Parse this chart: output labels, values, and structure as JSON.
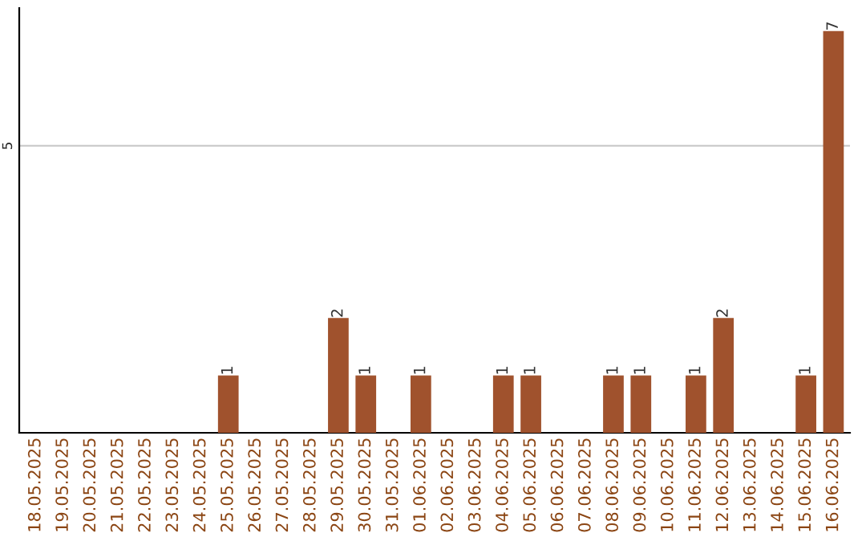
{
  "chart_data": {
    "type": "bar",
    "categories": [
      "18.05.2025",
      "19.05.2025",
      "20.05.2025",
      "21.05.2025",
      "22.05.2025",
      "23.05.2025",
      "24.05.2025",
      "25.05.2025",
      "26.05.2025",
      "27.05.2025",
      "28.05.2025",
      "29.05.2025",
      "30.05.2025",
      "31.05.2025",
      "01.06.2025",
      "02.06.2025",
      "03.06.2025",
      "04.06.2025",
      "05.06.2025",
      "06.06.2025",
      "07.06.2025",
      "08.06.2025",
      "09.06.2025",
      "10.06.2025",
      "11.06.2025",
      "12.06.2025",
      "13.06.2025",
      "14.06.2025",
      "15.06.2025",
      "16.06.2025"
    ],
    "values": [
      0,
      0,
      0,
      0,
      0,
      0,
      0,
      1,
      0,
      0,
      0,
      2,
      1,
      0,
      1,
      0,
      0,
      1,
      1,
      0,
      0,
      1,
      1,
      0,
      1,
      2,
      0,
      0,
      1,
      7
    ],
    "value_labels": [
      null,
      null,
      null,
      null,
      null,
      null,
      null,
      "1",
      null,
      null,
      null,
      "2",
      "1",
      null,
      "1",
      null,
      null,
      "1",
      "1",
      null,
      null,
      "1",
      "1",
      null,
      "1",
      "2",
      null,
      null,
      "1",
      "7"
    ],
    "color": "#a0522d",
    "ylim": [
      0,
      7.4
    ],
    "yticks": [
      5
    ],
    "grid": "y"
  }
}
